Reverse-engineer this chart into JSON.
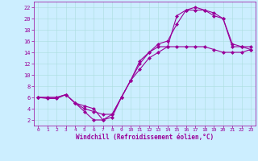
{
  "xlabel": "Windchill (Refroidissement éolien,°C)",
  "bg_color": "#cceeff",
  "line_color": "#990099",
  "grid_color": "#aadddd",
  "xlim": [
    -0.5,
    23.5
  ],
  "ylim": [
    1,
    23
  ],
  "xticks": [
    0,
    1,
    2,
    3,
    4,
    5,
    6,
    7,
    8,
    9,
    10,
    11,
    12,
    13,
    14,
    15,
    16,
    17,
    18,
    19,
    20,
    21,
    22,
    23
  ],
  "yticks": [
    2,
    4,
    6,
    8,
    10,
    12,
    14,
    16,
    18,
    20,
    22
  ],
  "line1_x": [
    0,
    1,
    2,
    3,
    4,
    5,
    6,
    7,
    8,
    9,
    10,
    11,
    12,
    13,
    14,
    15,
    16,
    17,
    18,
    19,
    20,
    21,
    22,
    23
  ],
  "line1_y": [
    6,
    6,
    6,
    6.5,
    5,
    4,
    3.5,
    3,
    3,
    6,
    9,
    12.5,
    14,
    15,
    15,
    20.5,
    21.5,
    21.5,
    21.5,
    20.5,
    20,
    15.5,
    15,
    15
  ],
  "line2_x": [
    0,
    1,
    2,
    3,
    4,
    5,
    6,
    7,
    8,
    9,
    10,
    11,
    12,
    13,
    14,
    15,
    16,
    17,
    18,
    19,
    20,
    21,
    22,
    23
  ],
  "line2_y": [
    6,
    5.8,
    5.8,
    6.5,
    5,
    3.5,
    2,
    2,
    3,
    6,
    9,
    12,
    14,
    15.5,
    16,
    19,
    21.5,
    22,
    21.5,
    21,
    20,
    15,
    15,
    14.5
  ],
  "line3_x": [
    0,
    2,
    3,
    4,
    5,
    6,
    7,
    8,
    9,
    10,
    11,
    12,
    13,
    14,
    15,
    16,
    17,
    18,
    19,
    20,
    21,
    22,
    23
  ],
  "line3_y": [
    6,
    6,
    6.5,
    5,
    4.5,
    4,
    2,
    2.5,
    6,
    9,
    11,
    13,
    14,
    15,
    15,
    15,
    15,
    15,
    14.5,
    14,
    14,
    14,
    14.5
  ],
  "marker_size": 2.5,
  "line_width": 0.8
}
